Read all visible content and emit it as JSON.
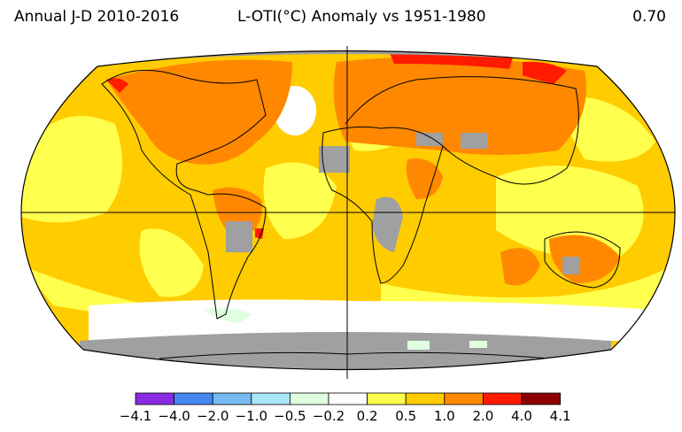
{
  "header": {
    "left": "Annual J-D 2010-2016",
    "center": "L-OTI(°C) Anomaly vs 1951-1980",
    "right": "0.70"
  },
  "map": {
    "projection": "Robinson",
    "gridlines": [
      "equator",
      "prime-meridian"
    ],
    "no_data_color": "#a0a0a0"
  },
  "legend": {
    "colors": [
      "#8a2be2",
      "#4488ee",
      "#77bbf0",
      "#a8e6f8",
      "#dfffdf",
      "#ffffff",
      "#ffff4d",
      "#ffcc00",
      "#ff8800",
      "#ff1a00",
      "#8b0000"
    ],
    "ticks": [
      "-4.1",
      "-4.0",
      "-2.0",
      "-1.0",
      "-0.5",
      "-0.2",
      "0.2",
      "0.5",
      "1.0",
      "2.0",
      "4.0",
      "4.1"
    ]
  }
}
